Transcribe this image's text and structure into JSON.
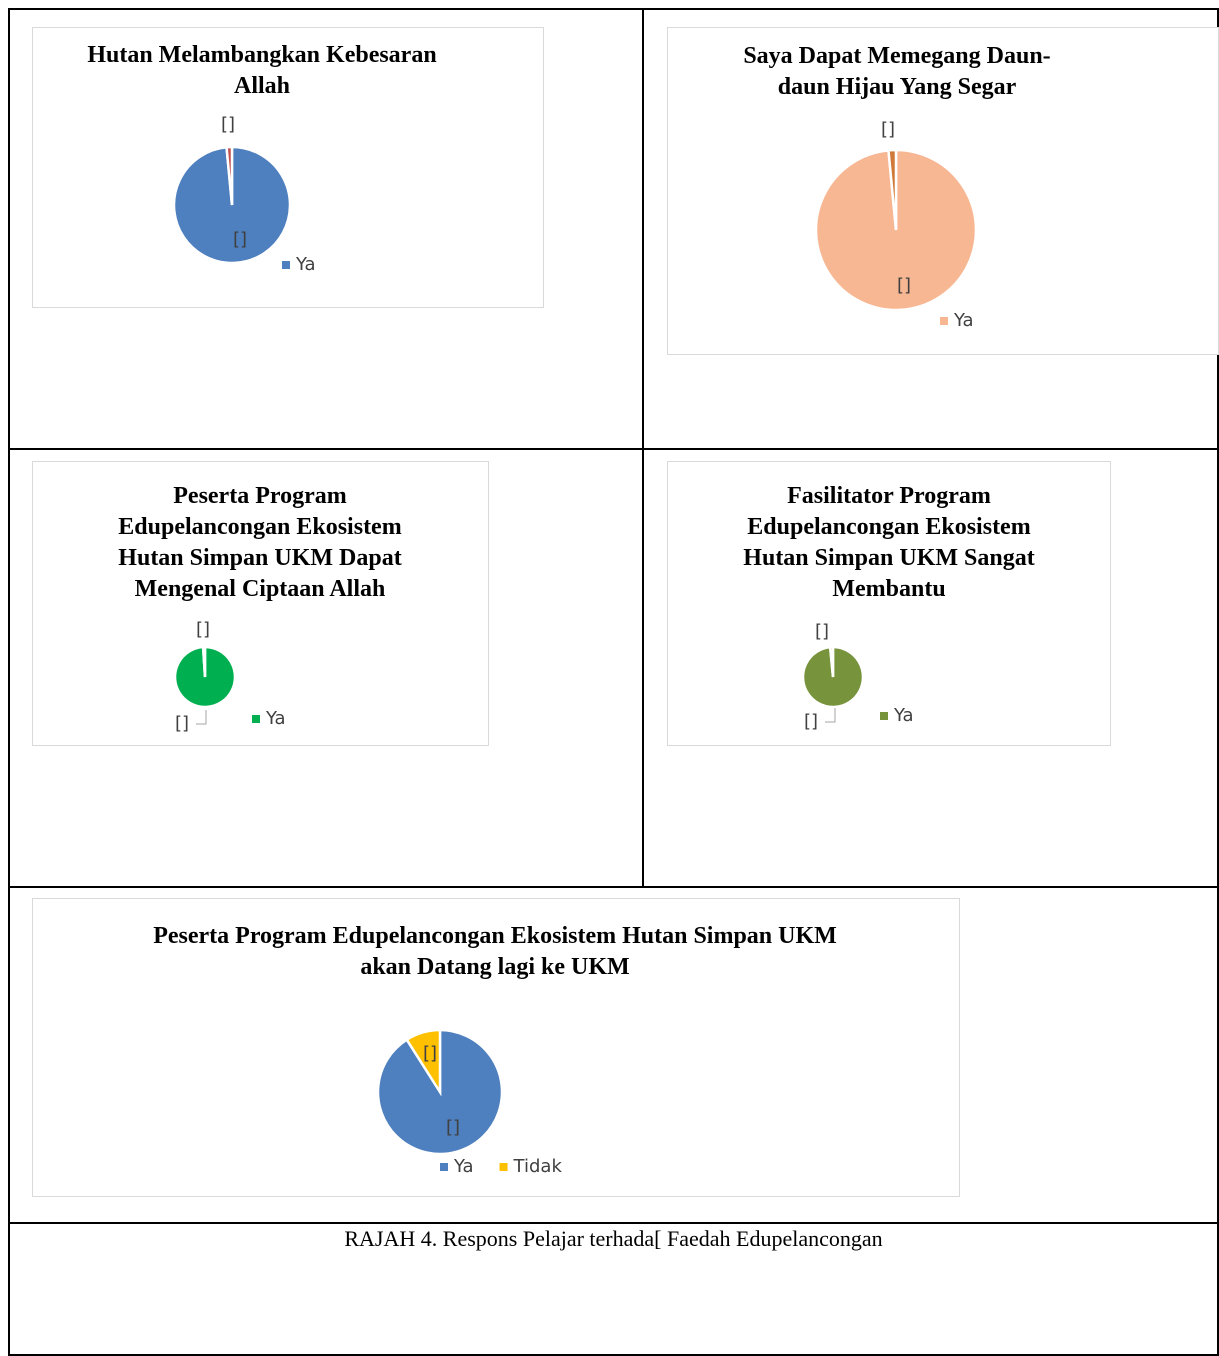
{
  "chart_data": [
    {
      "type": "pie",
      "title": "Hutan Melambangkan Kebesaran Allah",
      "categories": [
        "Ya",
        null
      ],
      "values": [
        98.5,
        1.5
      ],
      "value_labels": [
        "[]",
        "[]"
      ],
      "colors": [
        "#4e7fbe",
        "#c0504d"
      ]
    },
    {
      "type": "pie",
      "title": "Saya Dapat Memegang Daun-daun Hijau Yang Segar",
      "categories": [
        "Ya",
        null
      ],
      "values": [
        98.5,
        1.5
      ],
      "value_labels": [
        "[]",
        "[]"
      ],
      "colors": [
        "#f8b793",
        "#d07a3a"
      ]
    },
    {
      "type": "pie",
      "title": "Peserta Program Edupelancongan Ekosistem Hutan Simpan UKM Dapat Mengenal Ciptaan Allah",
      "categories": [
        "Ya",
        null
      ],
      "values": [
        99,
        1
      ],
      "value_labels": [
        "[]",
        "[]"
      ],
      "colors": [
        "#00b050",
        "#a5a5a5"
      ]
    },
    {
      "type": "pie",
      "title": "Fasilitator Program Edupelancongan Ekosistem Hutan Simpan UKM Sangat Membantu",
      "categories": [
        "Ya",
        null
      ],
      "values": [
        98.5,
        1.5
      ],
      "value_labels": [
        "[]",
        "[]"
      ],
      "colors": [
        "#77933c",
        "#c0504d"
      ]
    },
    {
      "type": "pie",
      "title": "Peserta Program Edupelancongan Ekosistem Hutan Simpan UKM akan Datang lagi ke UKM",
      "categories": [
        "Ya",
        "Tidak"
      ],
      "values": [
        91,
        9
      ],
      "value_labels": [
        "[]",
        "[]"
      ],
      "colors": [
        "#4e7fbe",
        "#ffc000"
      ]
    }
  ],
  "caption": "RAJAH 4. Respons Pelajar terhada[ Faedah Edupelancongan"
}
